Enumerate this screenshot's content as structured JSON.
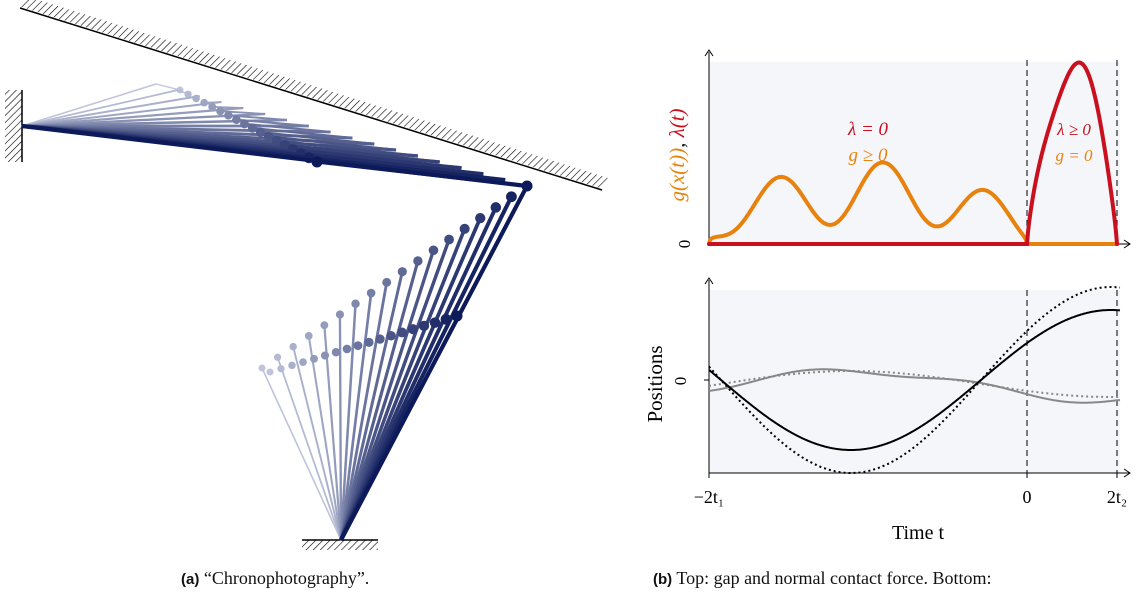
{
  "left_panel": {
    "caption_tag": "(a)",
    "caption_text": "“Chronophotography”.",
    "colors": {
      "dark": "#0d1a5a",
      "light": "#dde2f0"
    },
    "frame_count": 18
  },
  "right_panel": {
    "caption_tag": "(b)",
    "caption_text": "Top: gap and normal contact force. Bottom:",
    "top_plot": {
      "ylabel_g": "g(x(t))",
      "ylabel_sep": ", ",
      "ylabel_lambda": "λ(t)",
      "zero_label": "0",
      "annotation_left_lambda": "λ = 0",
      "annotation_left_g": "g ≥ 0",
      "annotation_right_lambda": "λ ≥ 0",
      "annotation_right_g": "g = 0",
      "colors": {
        "g": "#e8820e",
        "lambda": "#c8101e",
        "background": "#f5f6fa"
      }
    },
    "bottom_plot": {
      "ylabel": "Positions",
      "zero_label": "0",
      "colors": {
        "black": "#000000",
        "gray": "#888888"
      }
    },
    "x_axis": {
      "label": "Time t",
      "ticks": [
        "−2t₁",
        "0",
        "2t₂"
      ]
    }
  }
}
